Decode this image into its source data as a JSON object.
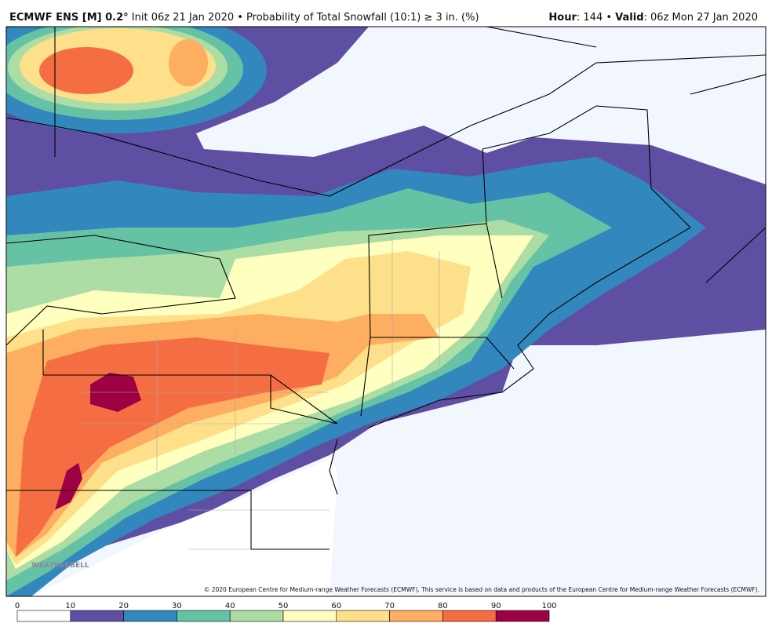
{
  "header": {
    "model": "ECMWF ENS [M] 0.2°",
    "description": "Init 06z 21 Jan 2020 • Probability of Total Snowfall (10:1) ≥ 3 in. (%)",
    "hour_label": "Hour",
    "hour": ": 144 •",
    "valid_label": "Valid",
    "valid": ": 06z Mon 27 Jan 2020"
  },
  "copyright": "© 2020 European Centre for Medium-range Weather Forecasts (ECMWF). This service is based on data and products of the European Centre for Medium-range Weather Forecasts (ECMWF).",
  "watermark": "WEATHERBELL",
  "colorbar": {
    "ticks": [
      0,
      10,
      20,
      30,
      40,
      50,
      60,
      70,
      80,
      90,
      100
    ],
    "colors": [
      "#ffffff",
      "#5e4fa2",
      "#3288bd",
      "#66c2a5",
      "#abdda4",
      "#ffffbf",
      "#fee08b",
      "#fdae61",
      "#f46d43",
      "#9e0142"
    ]
  }
}
